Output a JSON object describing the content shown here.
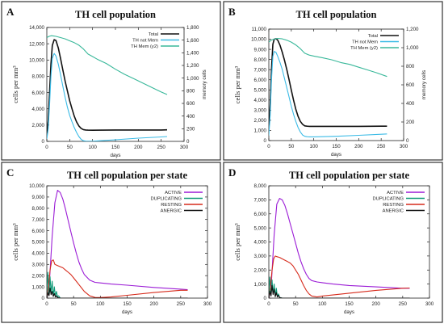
{
  "figure": {
    "panels": [
      {
        "letter": "A",
        "title": "TH cell population"
      },
      {
        "letter": "B",
        "title": "TH cell population"
      },
      {
        "letter": "C",
        "title": "TH cell population  per state"
      },
      {
        "letter": "D",
        "title": "TH cell population  per state"
      }
    ]
  },
  "colors": {
    "total": "#111111",
    "th_not_mem": "#3bbbe6",
    "th_mem": "#39b89a",
    "active": "#9b1cd6",
    "duplicating": "#0f9a78",
    "resting": "#d62b1c",
    "anergic": "#111111",
    "frame": "#333333"
  },
  "chart_data": [
    {
      "type": "line",
      "title": "TH cell population",
      "xlabel": "days",
      "ylabel": "cells per mm³",
      "y2label": "memory cells",
      "xlim": [
        0,
        300
      ],
      "ylim": [
        0,
        14000
      ],
      "y2lim": [
        0,
        1800
      ],
      "xticks": [
        0,
        50,
        100,
        150,
        200,
        250,
        300
      ],
      "yticks": [
        0,
        2000,
        4000,
        6000,
        8000,
        10000,
        12000,
        14000
      ],
      "y2ticks": [
        0,
        200,
        400,
        600,
        800,
        1000,
        1200,
        1400,
        1600,
        1800
      ],
      "legend_position": "top-right",
      "series": [
        {
          "name": "Total",
          "axis": "y",
          "color_key": "total",
          "x": [
            0,
            3,
            6,
            9,
            12,
            16,
            20,
            25,
            30,
            35,
            40,
            45,
            50,
            55,
            60,
            65,
            70,
            75,
            80,
            85,
            90,
            100,
            120,
            150,
            200,
            250,
            263
          ],
          "y": [
            1000,
            2500,
            6000,
            9500,
            11800,
            12500,
            12400,
            11500,
            10200,
            8800,
            7400,
            6200,
            5000,
            4000,
            3100,
            2400,
            1900,
            1600,
            1450,
            1400,
            1380,
            1370,
            1380,
            1400,
            1400,
            1400,
            1420
          ]
        },
        {
          "name": "TH not Mem",
          "axis": "y",
          "color_key": "th_not_mem",
          "x": [
            0,
            3,
            6,
            9,
            12,
            16,
            20,
            25,
            30,
            35,
            40,
            45,
            50,
            55,
            60,
            65,
            70,
            75,
            80,
            85,
            90,
            100,
            150,
            200,
            250,
            263
          ],
          "y": [
            300,
            1500,
            4500,
            8000,
            10200,
            10800,
            10500,
            9500,
            8200,
            6800,
            5400,
            4200,
            3200,
            2400,
            1700,
            1100,
            600,
            250,
            80,
            30,
            20,
            20,
            200,
            400,
            550,
            600
          ]
        },
        {
          "name": "TH Mem (y2)",
          "axis": "y2",
          "color_key": "th_mem",
          "x": [
            0,
            5,
            10,
            15,
            20,
            30,
            40,
            50,
            60,
            70,
            80,
            90,
            100,
            110,
            130,
            150,
            170,
            190,
            210,
            230,
            250,
            263
          ],
          "y": [
            1640,
            1660,
            1670,
            1665,
            1660,
            1640,
            1620,
            1590,
            1560,
            1520,
            1460,
            1380,
            1340,
            1300,
            1230,
            1140,
            1060,
            990,
            920,
            850,
            780,
            740
          ]
        }
      ]
    },
    {
      "type": "line",
      "title": "TH cell population",
      "xlabel": "days",
      "ylabel": "cells per mm³",
      "y2label": "memory cells",
      "xlim": [
        0,
        300
      ],
      "ylim": [
        0,
        11000
      ],
      "y2lim": [
        0,
        1200
      ],
      "xticks": [
        0,
        50,
        100,
        150,
        200,
        250,
        300
      ],
      "yticks": [
        0,
        1000,
        2000,
        3000,
        4000,
        5000,
        6000,
        7000,
        8000,
        9000,
        10000,
        11000
      ],
      "y2ticks": [
        0,
        200,
        400,
        600,
        800,
        1000,
        1200
      ],
      "legend_position": "top-right",
      "series": [
        {
          "name": "Total",
          "axis": "y",
          "color_key": "total",
          "x": [
            0,
            3,
            6,
            9,
            12,
            16,
            20,
            25,
            30,
            35,
            40,
            45,
            50,
            55,
            60,
            65,
            70,
            75,
            80,
            85,
            90,
            100,
            150,
            200,
            250,
            263
          ],
          "y": [
            1500,
            3500,
            7000,
            9500,
            10000,
            10050,
            9900,
            9400,
            8700,
            7900,
            7000,
            6000,
            5000,
            4000,
            3100,
            2400,
            1900,
            1600,
            1450,
            1420,
            1400,
            1400,
            1400,
            1400,
            1420,
            1420
          ]
        },
        {
          "name": "TH not Mem",
          "axis": "y",
          "color_key": "th_not_mem",
          "x": [
            0,
            3,
            6,
            9,
            12,
            16,
            20,
            25,
            30,
            35,
            40,
            45,
            50,
            55,
            60,
            65,
            70,
            75,
            80,
            85,
            90,
            100,
            150,
            200,
            250,
            263
          ],
          "y": [
            500,
            2500,
            6000,
            8300,
            8800,
            8700,
            8300,
            7700,
            7000,
            6100,
            5200,
            4300,
            3400,
            2600,
            1900,
            1300,
            850,
            550,
            420,
            380,
            370,
            370,
            420,
            520,
            620,
            650
          ]
        },
        {
          "name": "TH Mem (y2)",
          "axis": "y2",
          "color_key": "th_mem",
          "x": [
            0,
            5,
            10,
            15,
            20,
            30,
            40,
            50,
            60,
            70,
            80,
            90,
            100,
            120,
            140,
            160,
            180,
            200,
            220,
            240,
            263
          ],
          "y": [
            1060,
            1080,
            1090,
            1095,
            1100,
            1095,
            1080,
            1060,
            1030,
            990,
            940,
            920,
            910,
            890,
            870,
            840,
            820,
            790,
            760,
            730,
            690
          ]
        }
      ]
    },
    {
      "type": "line",
      "title": "TH cell population  per state",
      "xlabel": "days",
      "ylabel": "cells per mm³",
      "xlim": [
        0,
        300
      ],
      "ylim": [
        0,
        10000
      ],
      "xticks": [
        0,
        50,
        100,
        150,
        200,
        250,
        300
      ],
      "yticks": [
        0,
        1000,
        2000,
        3000,
        4000,
        5000,
        6000,
        7000,
        8000,
        9000,
        10000
      ],
      "legend_position": "top-right",
      "series": [
        {
          "name": "ACTIVE",
          "axis": "y",
          "color_key": "active",
          "x": [
            0,
            5,
            10,
            15,
            20,
            25,
            30,
            35,
            40,
            45,
            50,
            55,
            60,
            65,
            70,
            80,
            90,
            100,
            120,
            150,
            200,
            250,
            263
          ],
          "y": [
            0,
            1500,
            5500,
            8500,
            9600,
            9400,
            8800,
            7900,
            6900,
            5900,
            4900,
            4000,
            3200,
            2600,
            2100,
            1600,
            1400,
            1350,
            1250,
            1150,
            950,
            800,
            750
          ]
        },
        {
          "name": "DUPLICATING",
          "axis": "y",
          "color_key": "duplicating",
          "x": [
            0,
            2,
            4,
            6,
            8,
            10,
            12,
            14,
            16,
            18,
            20,
            22,
            25,
            30,
            263
          ],
          "y": [
            0,
            2300,
            300,
            1900,
            400,
            1500,
            200,
            1000,
            150,
            600,
            100,
            200,
            0,
            0,
            0
          ]
        },
        {
          "name": "RESTING",
          "axis": "y",
          "color_key": "resting",
          "x": [
            0,
            3,
            6,
            9,
            12,
            15,
            20,
            25,
            30,
            35,
            40,
            45,
            50,
            55,
            60,
            65,
            70,
            80,
            90,
            100,
            120,
            150,
            200,
            250,
            263
          ],
          "y": [
            0,
            1000,
            2500,
            3300,
            3400,
            3000,
            2900,
            2800,
            2700,
            2500,
            2300,
            2100,
            1800,
            1500,
            1200,
            900,
            600,
            200,
            60,
            50,
            100,
            250,
            500,
            700,
            700
          ]
        },
        {
          "name": "ANERGIC",
          "axis": "y",
          "color_key": "anergic",
          "x": [
            0,
            2,
            4,
            6,
            8,
            10,
            12,
            14,
            16,
            18,
            20,
            25,
            30,
            263
          ],
          "y": [
            0,
            500,
            200,
            900,
            300,
            600,
            150,
            400,
            100,
            200,
            50,
            0,
            0,
            0
          ]
        }
      ]
    },
    {
      "type": "line",
      "title": "TH cell population  per state",
      "xlabel": "days",
      "ylabel": "cells per mm³",
      "xlim": [
        0,
        300
      ],
      "ylim": [
        0,
        8000
      ],
      "xticks": [
        0,
        50,
        100,
        150,
        200,
        250,
        300
      ],
      "yticks": [
        0,
        1000,
        2000,
        3000,
        4000,
        5000,
        6000,
        7000,
        8000
      ],
      "legend_position": "top-right",
      "series": [
        {
          "name": "ACTIVE",
          "axis": "y",
          "color_key": "active",
          "x": [
            0,
            5,
            10,
            15,
            20,
            25,
            30,
            35,
            40,
            45,
            50,
            55,
            60,
            65,
            70,
            75,
            80,
            90,
            100,
            120,
            150,
            200,
            250,
            263
          ],
          "y": [
            0,
            1200,
            4500,
            6700,
            7100,
            7000,
            6600,
            6000,
            5300,
            4600,
            3900,
            3200,
            2600,
            2100,
            1700,
            1400,
            1250,
            1150,
            1100,
            1000,
            900,
            800,
            700,
            700
          ]
        },
        {
          "name": "DUPLICATING",
          "axis": "y",
          "color_key": "duplicating",
          "x": [
            0,
            2,
            4,
            6,
            8,
            10,
            12,
            14,
            16,
            18,
            20,
            25,
            30,
            263
          ],
          "y": [
            0,
            1500,
            200,
            1300,
            300,
            1000,
            150,
            700,
            100,
            300,
            50,
            0,
            0,
            0
          ]
        },
        {
          "name": "RESTING",
          "axis": "y",
          "color_key": "resting",
          "x": [
            0,
            3,
            6,
            9,
            12,
            15,
            20,
            25,
            30,
            35,
            40,
            45,
            50,
            55,
            60,
            65,
            70,
            75,
            80,
            90,
            100,
            150,
            200,
            250,
            263
          ],
          "y": [
            0,
            800,
            2000,
            2800,
            3000,
            2950,
            2900,
            2800,
            2700,
            2600,
            2500,
            2300,
            2000,
            1700,
            1300,
            900,
            550,
            300,
            150,
            80,
            150,
            350,
            550,
            700,
            720
          ]
        },
        {
          "name": "ANERGIC",
          "axis": "y",
          "color_key": "anergic",
          "x": [
            0,
            2,
            4,
            6,
            8,
            10,
            12,
            14,
            16,
            18,
            20,
            25,
            30,
            263
          ],
          "y": [
            0,
            500,
            150,
            900,
            250,
            650,
            100,
            400,
            80,
            200,
            40,
            0,
            0,
            0
          ]
        }
      ]
    }
  ]
}
